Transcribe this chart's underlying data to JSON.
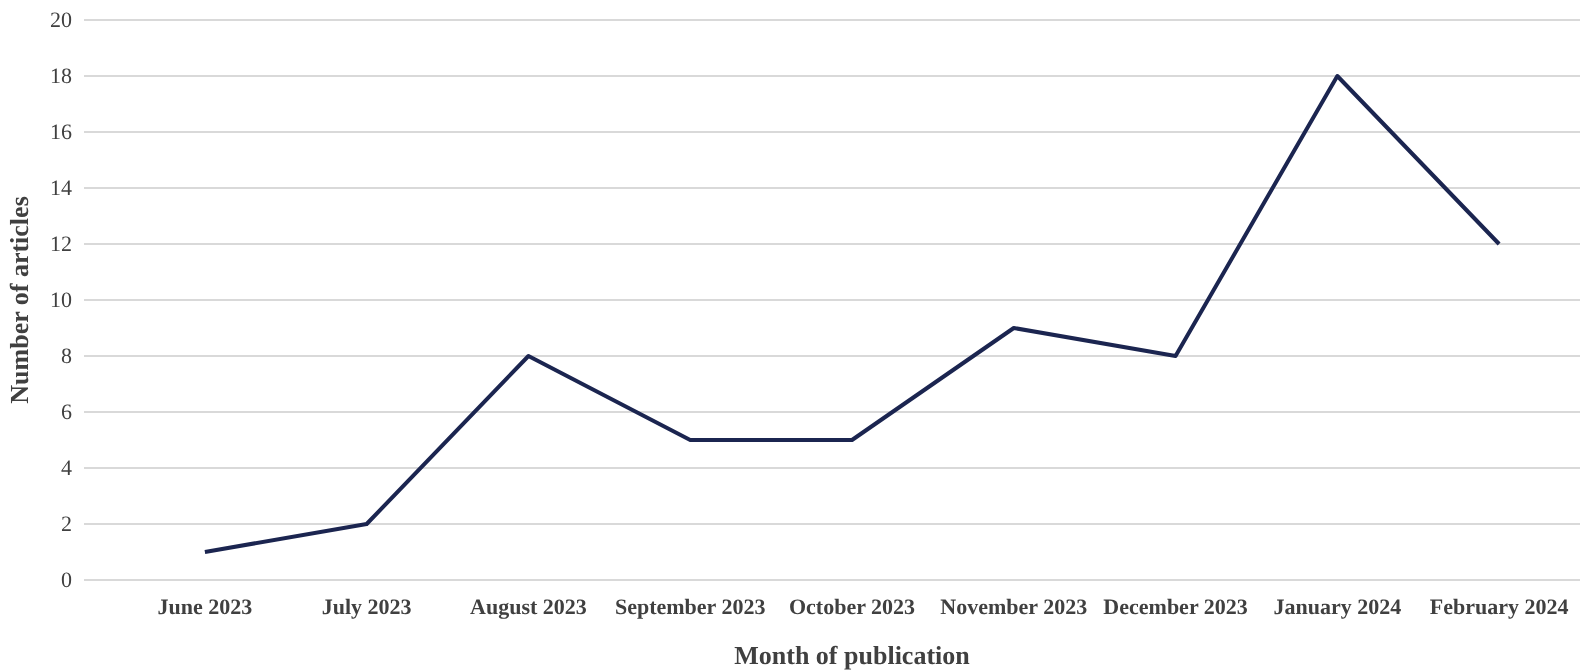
{
  "chart_data": {
    "type": "line",
    "xlabel": "Month of publication",
    "ylabel": "Number of articles",
    "categories": [
      "June 2023",
      "July 2023",
      "August 2023",
      "September 2023",
      "October 2023",
      "November 2023",
      "December 2023",
      "January 2024",
      "February 2024"
    ],
    "series": [
      {
        "color": "#1b2550",
        "values": [
          1,
          2,
          8,
          5,
          5,
          9,
          8,
          18,
          12
        ]
      }
    ],
    "ylim": [
      0,
      20
    ],
    "yticks": [
      0,
      2,
      4,
      6,
      8,
      10,
      12,
      14,
      16,
      18,
      20
    ],
    "grid": "y",
    "marker": "none",
    "line_style": "solid"
  }
}
